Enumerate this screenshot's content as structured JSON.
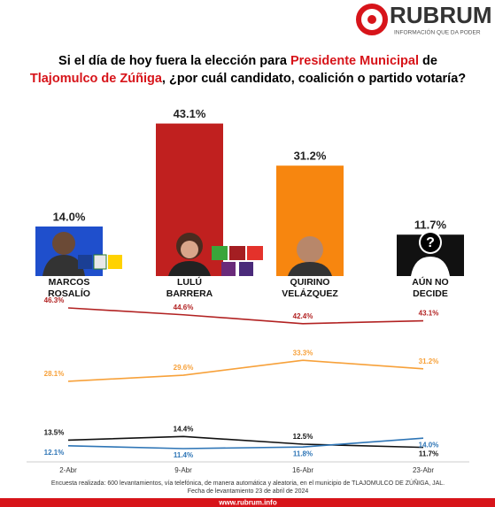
{
  "brand": {
    "name": "RUBRUM",
    "tagline": "INFORMACIÓN QUE DA PODER"
  },
  "chart_data": [
    {
      "type": "bar",
      "title": [
        "Si el día de hoy fuera la elección para ",
        "Presidente Municipal",
        " de",
        "Tlajomulco de Zúñiga",
        ", ¿por cuál candidato, coalición o partido votaría?"
      ],
      "categories": [
        [
          "MARCOS",
          "ROSALÍO"
        ],
        [
          "LULÚ",
          "BARRERA"
        ],
        [
          "QUIRINO",
          "VELÁZQUEZ"
        ],
        [
          "AÚN NO",
          "DECIDE"
        ]
      ],
      "values": [
        14.0,
        43.1,
        31.2,
        11.7
      ],
      "value_labels": [
        "14.0%",
        "43.1%",
        "31.2%",
        "11.7%"
      ],
      "colors": [
        "#1f4fcc",
        "#c0201f",
        "#f7860f",
        "#111111"
      ]
    },
    {
      "type": "line",
      "x": [
        "2-Abr",
        "9-Abr",
        "16-Abr",
        "23-Abr"
      ],
      "series": [
        {
          "color": "#b22222",
          "values": [
            46.3,
            44.6,
            42.4,
            43.1
          ],
          "value_labels": [
            "46.3%",
            "44.6%",
            "42.4%",
            "43.1%"
          ]
        },
        {
          "color": "#f7a13a",
          "values": [
            28.1,
            29.6,
            33.3,
            31.2
          ],
          "value_labels": [
            "28.1%",
            "29.6%",
            "33.3%",
            "31.2%"
          ]
        },
        {
          "color": "#111111",
          "values": [
            13.5,
            14.4,
            12.5,
            11.7
          ],
          "value_labels": [
            "13.5%",
            "14.4%",
            "12.5%",
            "11.7%"
          ]
        },
        {
          "color": "#2e75b6",
          "values": [
            12.1,
            11.4,
            11.8,
            14.0
          ],
          "value_labels": [
            "12.1%",
            "11.4%",
            "11.8%",
            "14.0%"
          ]
        }
      ]
    }
  ],
  "notes": [
    "Encuesta realizada: 600 levantamientos, vía telefónica, de manera automática y aleatoria, en el municipio de TLAJOMULCO DE ZÚÑIGA, JAL.",
    "Fecha de levantamiento 23 de abril de 2024"
  ],
  "footer": {
    "url": "www.rubrum.info"
  }
}
